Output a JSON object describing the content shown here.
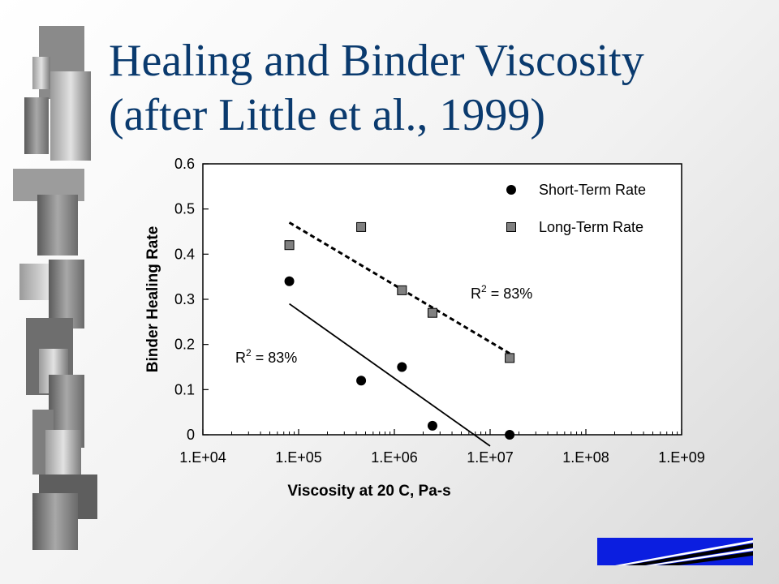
{
  "slide": {
    "title_line1": "Healing and Binder Viscosity",
    "title_line2": "(after Little et al., 1999)"
  },
  "colors": {
    "title": "#0a3a6e",
    "logo_blue": "#0b1ee0",
    "short_marker": "#000000",
    "long_marker": "#808080"
  },
  "chart_data": {
    "type": "scatter",
    "xlabel": "Viscosity at 20 C, Pa-s",
    "ylabel": "Binder Healing Rate",
    "x_scale": "log",
    "xlim": [
      10000,
      1000000000
    ],
    "ylim": [
      0,
      0.6
    ],
    "x_ticks": [
      {
        "value": 10000,
        "label": "1.E+04"
      },
      {
        "value": 100000,
        "label": "1.E+05"
      },
      {
        "value": 1000000,
        "label": "1.E+06"
      },
      {
        "value": 10000000,
        "label": "1.E+07"
      },
      {
        "value": 100000000,
        "label": "1.E+08"
      },
      {
        "value": 1000000000,
        "label": "1.E+09"
      }
    ],
    "y_ticks": [
      {
        "value": 0,
        "label": "0"
      },
      {
        "value": 0.1,
        "label": "0.1"
      },
      {
        "value": 0.2,
        "label": "0.2"
      },
      {
        "value": 0.3,
        "label": "0.3"
      },
      {
        "value": 0.4,
        "label": "0.4"
      },
      {
        "value": 0.5,
        "label": "0.5"
      },
      {
        "value": 0.6,
        "label": "0.6"
      }
    ],
    "grid": false,
    "legend_position": "top-right",
    "series": [
      {
        "name": "Short-Term Rate",
        "marker": "circle",
        "points": [
          {
            "x": 80000,
            "y": 0.34
          },
          {
            "x": 450000,
            "y": 0.12
          },
          {
            "x": 1200000,
            "y": 0.15
          },
          {
            "x": 2500000,
            "y": 0.02
          },
          {
            "x": 16000000,
            "y": 0
          }
        ],
        "trendline": {
          "style": "solid",
          "from": {
            "x": 80000,
            "y": 0.29
          },
          "to": {
            "x": 10000000,
            "y": -0.025
          },
          "r2_label": {
            "prefix": "R",
            "sup": "2",
            "suffix": " = 83%"
          }
        }
      },
      {
        "name": "Long-Term Rate",
        "marker": "square",
        "points": [
          {
            "x": 80000,
            "y": 0.42
          },
          {
            "x": 450000,
            "y": 0.46
          },
          {
            "x": 1200000,
            "y": 0.32
          },
          {
            "x": 2500000,
            "y": 0.27
          },
          {
            "x": 16000000,
            "y": 0.17
          }
        ],
        "trendline": {
          "style": "dashed",
          "from": {
            "x": 80000,
            "y": 0.47
          },
          "to": {
            "x": 16000000,
            "y": 0.18
          },
          "r2_label": {
            "prefix": "R",
            "sup": "2",
            "suffix": " = 83%"
          }
        }
      }
    ]
  }
}
